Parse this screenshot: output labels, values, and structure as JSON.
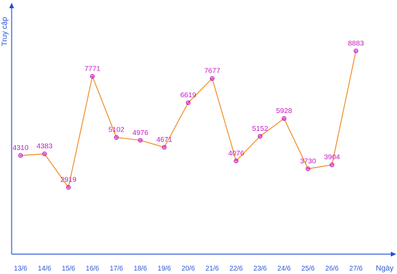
{
  "chart_data": {
    "type": "line",
    "xlabel": "Ngày",
    "ylabel": "Truy cập",
    "categories": [
      "13/6",
      "14/6",
      "15/6",
      "16/6",
      "17/6",
      "18/6",
      "19/6",
      "20/6",
      "21/6",
      "22/6",
      "23/6",
      "24/6",
      "25/6",
      "26/6",
      "27/6"
    ],
    "series": [
      {
        "values": [
          4310,
          4383,
          2919,
          7771,
          5102,
          4976,
          4671,
          6619,
          7677,
          4076,
          5152,
          5928,
          3730,
          3904,
          8883
        ],
        "line_color": "#f08519",
        "marker_color": "#c418c4",
        "label_color": "#c418c4"
      }
    ],
    "ylim": [
      0,
      10000
    ],
    "grid": false,
    "legend": "none",
    "axis_color": "#1f4fd6"
  }
}
